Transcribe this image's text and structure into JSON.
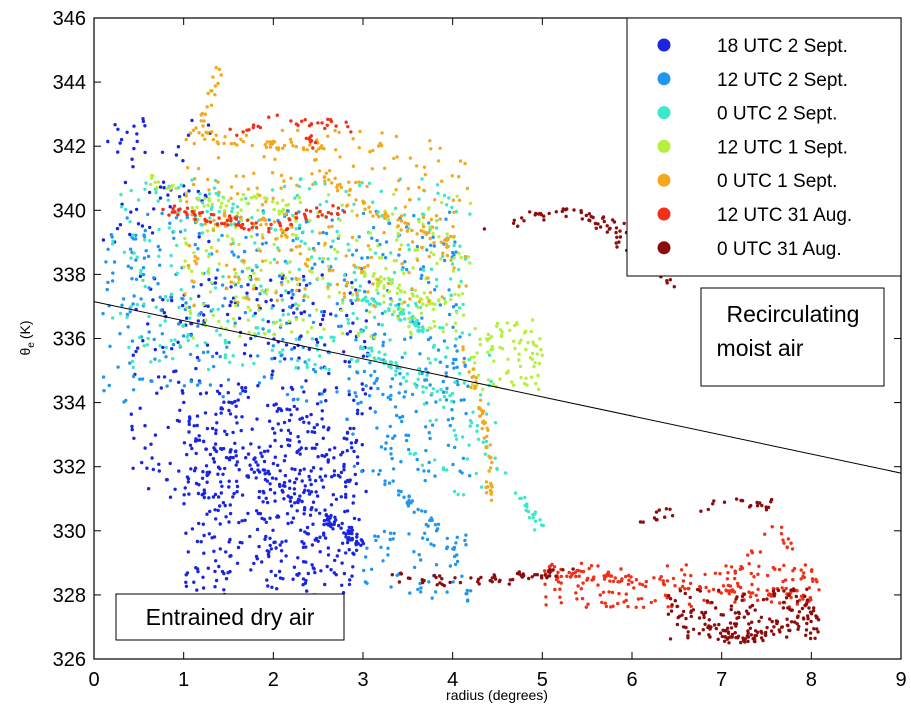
{
  "chart_data": {
    "type": "scatter",
    "xlabel": "radius (degrees)",
    "ylabel_main": "θ",
    "ylabel_sub": "e",
    "ylabel_unit": "(K)",
    "xlim": [
      0,
      9
    ],
    "ylim": [
      326,
      346
    ],
    "xticks": [
      0,
      1,
      2,
      3,
      4,
      5,
      6,
      7,
      8,
      9
    ],
    "yticks": [
      326,
      328,
      330,
      332,
      334,
      336,
      338,
      340,
      342,
      344,
      346
    ],
    "grid": false,
    "legend_position": "top-right",
    "series": [
      {
        "name": "18 UTC 2 Sept.",
        "color": "#1a25e0",
        "clusters": [
          {
            "x": [
              0.4,
              3.1
            ],
            "y": [
              331.0,
              338.0
            ],
            "n": 320
          },
          {
            "x": [
              1.0,
              3.0
            ],
            "y": [
              328.0,
              334.0
            ],
            "n": 260
          },
          {
            "x": [
              1.2,
              2.9
            ],
            "y": [
              328.6,
              332.6
            ],
            "n": 140
          },
          {
            "x": [
              0.1,
              1.3
            ],
            "y": [
              339.0,
              343.2
            ],
            "n": 60
          }
        ],
        "trails": [
          {
            "x": [
              1.2,
              2.0,
              2.6,
              3.0
            ],
            "y": [
              332.8,
              331.6,
              330.4,
              329.6
            ],
            "n": 70
          }
        ]
      },
      {
        "name": "12 UTC 2 Sept.",
        "color": "#2196f0",
        "clusters": [
          {
            "x": [
              0.1,
              4.1
            ],
            "y": [
              334.0,
              340.0
            ],
            "n": 360
          },
          {
            "x": [
              2.8,
              4.2
            ],
            "y": [
              331.5,
              335.5
            ],
            "n": 90
          },
          {
            "x": [
              3.0,
              4.2
            ],
            "y": [
              327.8,
              330.0
            ],
            "n": 60
          }
        ],
        "trails": [
          {
            "x": [
              3.1,
              3.4,
              3.8,
              4.1
            ],
            "y": [
              332.0,
              331.2,
              330.2,
              329.0
            ],
            "n": 40
          }
        ]
      },
      {
        "name": "0 UTC 2 Sept.",
        "color": "#3ce8c8",
        "clusters": [
          {
            "x": [
              0.2,
              4.2
            ],
            "y": [
              335.0,
              341.0
            ],
            "n": 320
          },
          {
            "x": [
              3.5,
              4.5
            ],
            "y": [
              331.0,
              335.5
            ],
            "n": 50
          }
        ],
        "trails": [
          {
            "x": [
              2.9,
              3.4,
              3.7
            ],
            "y": [
              337.4,
              336.8,
              336.3
            ],
            "n": 50
          },
          {
            "x": [
              3.0,
              3.4,
              4.0
            ],
            "y": [
              335.8,
              335.0,
              334.0
            ],
            "n": 40
          },
          {
            "x": [
              4.2,
              4.5,
              4.8,
              5.0
            ],
            "y": [
              333.6,
              332.0,
              330.8,
              330.0
            ],
            "n": 30
          }
        ]
      },
      {
        "name": "12 UTC 1 Sept.",
        "color": "#b4f03c",
        "clusters": [
          {
            "x": [
              1.0,
              4.2
            ],
            "y": [
              336.0,
              340.5
            ],
            "n": 240
          },
          {
            "x": [
              4.2,
              5.0
            ],
            "y": [
              334.4,
              336.6
            ],
            "n": 80
          }
        ],
        "trails": [
          {
            "x": [
              0.6,
              1.2,
              1.8,
              2.2
            ],
            "y": [
              341.0,
              340.2,
              340.4,
              340.0
            ],
            "n": 40
          },
          {
            "x": [
              3.0,
              3.5,
              3.9
            ],
            "y": [
              338.0,
              337.4,
              337.0
            ],
            "n": 40
          }
        ]
      },
      {
        "name": "0 UTC 1 Sept.",
        "color": "#f5a81c",
        "clusters": [
          {
            "x": [
              1.0,
              4.2
            ],
            "y": [
              337.0,
              342.5
            ],
            "n": 230
          }
        ],
        "trails": [
          {
            "x": [
              1.1,
              1.3,
              1.4
            ],
            "y": [
              342.0,
              343.5,
              344.4
            ],
            "n": 20
          },
          {
            "x": [
              1.2,
              2.0,
              2.6
            ],
            "y": [
              342.3,
              342.1,
              342.0
            ],
            "n": 40
          },
          {
            "x": [
              2.4,
              3.0,
              3.6,
              4.0
            ],
            "y": [
              341.5,
              340.2,
              339.4,
              338.9
            ],
            "n": 50
          },
          {
            "x": [
              4.1,
              4.3,
              4.4,
              4.4
            ],
            "y": [
              336.0,
              334.0,
              332.5,
              331.0
            ],
            "n": 50
          },
          {
            "x": [
              1.2,
              1.6,
              2.2
            ],
            "y": [
              339.4,
              339.9,
              339.3
            ],
            "n": 25
          }
        ]
      },
      {
        "name": "12 UTC 31 Aug.",
        "color": "#f03018",
        "clusters": [
          {
            "x": [
              5.0,
              8.1
            ],
            "y": [
              327.6,
              329.0
            ],
            "n": 150
          }
        ],
        "trails": [
          {
            "x": [
              0.8,
              1.0,
              1.2,
              1.6,
              2.0,
              2.4,
              2.8
            ],
            "y": [
              340.0,
              340.0,
              339.8,
              339.6,
              339.4,
              339.9,
              340.0
            ],
            "n": 80
          },
          {
            "x": [
              1.5,
              2.0,
              2.6,
              3.0
            ],
            "y": [
              342.4,
              342.8,
              342.7,
              342.5
            ],
            "n": 30
          },
          {
            "x": [
              2.4,
              2.5
            ],
            "y": [
              342.4,
              341.8
            ],
            "n": 8
          },
          {
            "x": [
              5.0,
              5.5,
              6.0,
              6.6,
              7.2,
              7.6,
              8.0
            ],
            "y": [
              328.6,
              328.7,
              328.5,
              328.3,
              328.2,
              328.1,
              327.9
            ],
            "n": 90
          },
          {
            "x": [
              7.0,
              7.4,
              7.6,
              7.9
            ],
            "y": [
              328.0,
              329.5,
              330.2,
              329.0
            ],
            "n": 25
          }
        ]
      },
      {
        "name": "0 UTC 31 Aug.",
        "color": "#8c0d0d",
        "clusters": [
          {
            "x": [
              6.4,
              8.1
            ],
            "y": [
              326.6,
              328.2
            ],
            "n": 160
          }
        ],
        "trails": [
          {
            "x": [
              3.2,
              4.0,
              4.6,
              5.0,
              5.4
            ],
            "y": [
              328.6,
              328.4,
              328.5,
              328.6,
              328.9
            ],
            "n": 60
          },
          {
            "x": [
              4.3,
              4.9,
              5.2,
              5.6,
              6.0,
              6.2
            ],
            "y": [
              339.2,
              339.8,
              340.0,
              339.7,
              339.3,
              340.4
            ],
            "n": 50
          },
          {
            "x": [
              5.5,
              5.9,
              6.2,
              6.5
            ],
            "y": [
              339.6,
              338.9,
              338.0,
              337.6
            ],
            "n": 25
          },
          {
            "x": [
              6.0,
              6.4,
              7.0,
              7.6
            ],
            "y": [
              330.2,
              330.6,
              330.9,
              330.8
            ],
            "n": 30
          },
          {
            "x": [
              6.8,
              7.2,
              7.6,
              8.0
            ],
            "y": [
              326.9,
              326.6,
              326.8,
              327.4
            ],
            "n": 50
          }
        ]
      }
    ],
    "line": {
      "x": [
        0,
        9
      ],
      "y": [
        337.15,
        331.8
      ]
    },
    "annotations": [
      {
        "text_lines": [
          "Recirculating",
          "moist air"
        ],
        "x": 6.75,
        "y": 337.2,
        "box": true
      },
      {
        "text_lines": [
          "Entrained dry air"
        ],
        "x": 0.3,
        "y": 327.8,
        "box": true
      }
    ]
  }
}
